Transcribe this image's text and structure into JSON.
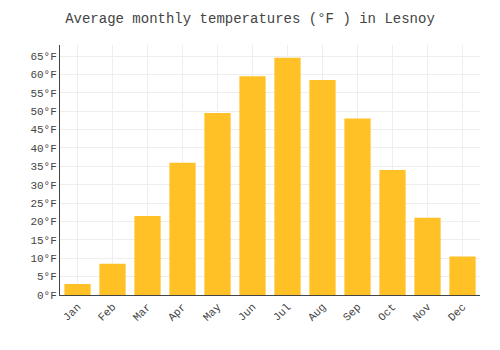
{
  "chart_data": {
    "type": "bar",
    "title": "Average monthly temperatures (°F ) in Lesnoy",
    "categories": [
      "Jan",
      "Feb",
      "Mar",
      "Apr",
      "May",
      "Jun",
      "Jul",
      "Aug",
      "Sep",
      "Oct",
      "Nov",
      "Dec"
    ],
    "values": [
      3,
      8.5,
      21.5,
      36,
      49.5,
      59.5,
      64.5,
      58.5,
      48,
      34,
      21,
      10.5
    ],
    "color": "#FFC125",
    "ylim": [
      0,
      68
    ],
    "yticks": [
      {
        "value": 0,
        "label": "0°F"
      },
      {
        "value": 5,
        "label": "5°F"
      },
      {
        "value": 10,
        "label": "10°F"
      },
      {
        "value": 15,
        "label": "15°F"
      },
      {
        "value": 20,
        "label": "20°F"
      },
      {
        "value": 25,
        "label": "25°F"
      },
      {
        "value": 30,
        "label": "30°F"
      },
      {
        "value": 35,
        "label": "35°F"
      },
      {
        "value": 40,
        "label": "40°F"
      },
      {
        "value": 45,
        "label": "45°F"
      },
      {
        "value": 50,
        "label": "50°F"
      },
      {
        "value": 55,
        "label": "55°F"
      },
      {
        "value": 60,
        "label": "60°F"
      },
      {
        "value": 65,
        "label": "65°F"
      }
    ],
    "grid": true
  }
}
